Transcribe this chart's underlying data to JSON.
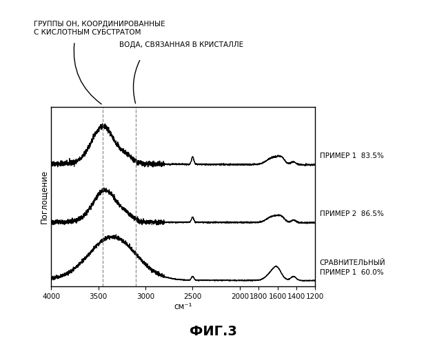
{
  "title": "ФИГ.3",
  "xlabel": "см⁻¹",
  "ylabel": "Поглощение",
  "xlim": [
    4000,
    1200
  ],
  "xticks": [
    4000,
    3500,
    3000,
    2500,
    2000,
    1800,
    1600,
    1400,
    1200
  ],
  "dashed_lines": [
    3450,
    3100
  ],
  "label1": "ПРИМЕР 1  83.5%",
  "label2": "ПРИМЕР 2  86.5%",
  "label3": "СРАВНИТЕЛЬНЫЙ\nПРИМЕР 1  60.0%",
  "annotation1": "ГРУППЫ ОН, КООРДИНИРОВАННЫЕ\nС КИСЛОТНЫМ СУБСТРАТОМ",
  "annotation2": "ВОДА, СВЯЗАННАЯ В КРИСТАЛЛЕ",
  "offsets": [
    1.6,
    0.8,
    0.0
  ],
  "background_color": "#ffffff",
  "line_color": "#000000"
}
